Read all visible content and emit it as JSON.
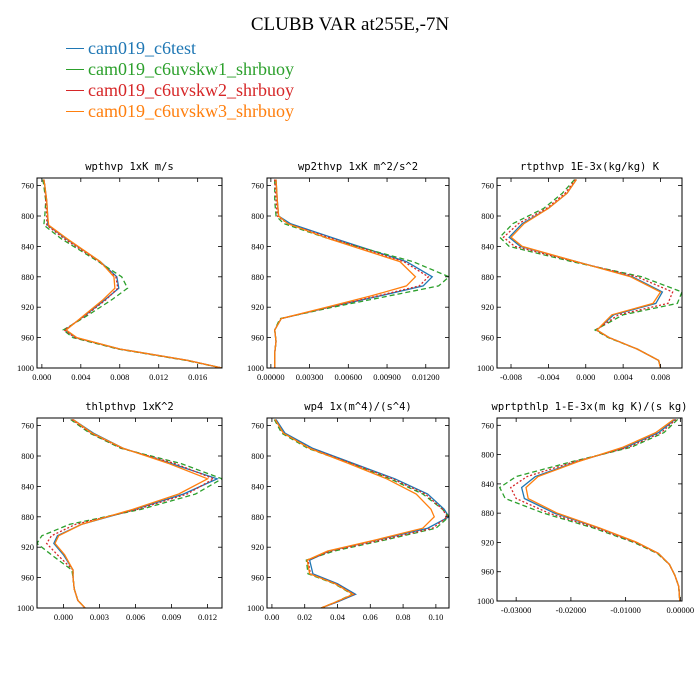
{
  "title": "CLUBB VAR at255E,-7N",
  "legend": [
    {
      "name": "cam019_c6test",
      "color": "#1f77b4",
      "dash": "solid"
    },
    {
      "name": "cam019_c6uvskw1_shrbuoy",
      "color": "#2ca02c",
      "dash": "dashed"
    },
    {
      "name": "cam019_c6uvskw2_shrbuoy",
      "color": "#d62728",
      "dash": "dotted"
    },
    {
      "name": "cam019_c6uvskw3_shrbuoy",
      "color": "#ff7f0e",
      "dash": "solid"
    }
  ],
  "chart_data": [
    {
      "type": "line",
      "title": "wpthvp   1xK m/s",
      "xlim": [
        -0.0005,
        0.0185
      ],
      "ylim": [
        1000,
        750
      ],
      "xticks": [
        "0.000",
        "0.004",
        "0.008",
        "0.012",
        "0.016"
      ],
      "xtick_values": [
        0,
        0.004,
        0.008,
        0.012,
        0.016
      ],
      "yticks": [
        760,
        800,
        840,
        880,
        920,
        960,
        1000
      ],
      "y": [
        752,
        760,
        780,
        800,
        812,
        830,
        860,
        880,
        895,
        910,
        930,
        950,
        960,
        975,
        990,
        1000
      ],
      "series": [
        {
          "values": [
            0.0002,
            0.0003,
            0.0005,
            0.0006,
            0.0006,
            0.0025,
            0.006,
            0.0077,
            0.0079,
            0.0065,
            0.0045,
            0.0024,
            0.0035,
            0.008,
            0.015,
            0.0185
          ]
        },
        {
          "values": [
            0.0001,
            0.0002,
            0.0004,
            0.0003,
            0.0002,
            0.002,
            0.0058,
            0.0082,
            0.0088,
            0.0072,
            0.0048,
            0.0022,
            0.0032,
            0.0078,
            0.0148,
            0.0185
          ]
        },
        {
          "values": [
            0.0002,
            0.0003,
            0.0004,
            0.0005,
            0.0005,
            0.0023,
            0.0059,
            0.0076,
            0.0078,
            0.0066,
            0.0046,
            0.0023,
            0.0034,
            0.0079,
            0.0149,
            0.0185
          ]
        },
        {
          "values": [
            0.0002,
            0.0003,
            0.0005,
            0.0006,
            0.0007,
            0.0026,
            0.006,
            0.0074,
            0.0075,
            0.0063,
            0.0044,
            0.0025,
            0.0036,
            0.008,
            0.015,
            0.0185
          ]
        }
      ]
    },
    {
      "type": "line",
      "title": "wp2thvp   1xK m^2/s^2",
      "xlim": [
        -0.0003,
        0.0138
      ],
      "ylim": [
        1000,
        750
      ],
      "xticks": [
        "0.00000",
        "0.00300",
        "0.00600",
        "0.00900",
        "0.01200"
      ],
      "xtick_values": [
        0,
        0.003,
        0.006,
        0.009,
        0.012
      ],
      "yticks": [
        760,
        800,
        840,
        880,
        920,
        960,
        1000
      ],
      "y": [
        752,
        780,
        800,
        810,
        830,
        860,
        880,
        892,
        905,
        920,
        935,
        950,
        965,
        980,
        1000
      ],
      "series": [
        {
          "values": [
            0.0004,
            0.0005,
            0.0006,
            0.0015,
            0.005,
            0.0105,
            0.0125,
            0.0118,
            0.0085,
            0.0045,
            0.0008,
            0.0003,
            0.0004,
            0.0003,
            0.0003
          ]
        },
        {
          "values": [
            0.0003,
            0.0003,
            0.0004,
            0.001,
            0.0045,
            0.011,
            0.0138,
            0.013,
            0.0092,
            0.0048,
            0.0007,
            0.0003,
            0.0004,
            0.0003,
            0.0003
          ]
        },
        {
          "values": [
            0.0003,
            0.0004,
            0.0005,
            0.0013,
            0.0048,
            0.0103,
            0.0122,
            0.0115,
            0.0083,
            0.0045,
            0.0008,
            0.0003,
            0.0004,
            0.0003,
            0.0003
          ]
        },
        {
          "values": [
            0.0004,
            0.0005,
            0.0006,
            0.0013,
            0.0045,
            0.01,
            0.0112,
            0.0105,
            0.0078,
            0.0043,
            0.0008,
            0.0003,
            0.0004,
            0.0003,
            0.0003
          ]
        }
      ]
    },
    {
      "type": "line",
      "title": "rtpthvp   1E-3x(kg/kg) K",
      "xlim": [
        -0.0095,
        0.0103
      ],
      "ylim": [
        1000,
        750
      ],
      "xticks": [
        "-0.008",
        "-0.004",
        "0.000",
        "0.004",
        "0.008"
      ],
      "xtick_values": [
        -0.008,
        -0.004,
        0,
        0.004,
        0.008
      ],
      "yticks": [
        760,
        800,
        840,
        880,
        920,
        960,
        1000
      ],
      "y": [
        752,
        770,
        790,
        810,
        828,
        840,
        860,
        880,
        900,
        915,
        930,
        950,
        960,
        975,
        990,
        1000
      ],
      "series": [
        {
          "values": [
            -0.001,
            -0.002,
            -0.004,
            -0.0068,
            -0.0082,
            -0.007,
            -0.001,
            0.005,
            0.0082,
            0.0075,
            0.003,
            0.0012,
            0.0025,
            0.0055,
            0.0078,
            0.008
          ]
        },
        {
          "values": [
            -0.0012,
            -0.0025,
            -0.0045,
            -0.0078,
            -0.0092,
            -0.0082,
            -0.0015,
            0.006,
            0.0103,
            0.0098,
            0.004,
            0.001,
            0.0024,
            0.0055,
            0.0078,
            0.008
          ]
        },
        {
          "values": [
            -0.0011,
            -0.0022,
            -0.0042,
            -0.0072,
            -0.0088,
            -0.0076,
            -0.0012,
            0.0055,
            0.0093,
            0.0088,
            0.0035,
            0.0011,
            0.0025,
            0.0055,
            0.0078,
            0.008
          ]
        },
        {
          "values": [
            -0.001,
            -0.002,
            -0.004,
            -0.0066,
            -0.008,
            -0.0068,
            -0.001,
            0.0048,
            0.008,
            0.0072,
            0.0028,
            0.0012,
            0.0025,
            0.0055,
            0.0078,
            0.008
          ]
        }
      ]
    },
    {
      "type": "line",
      "title": "thlpthvp   1xK^2",
      "xlim": [
        -0.0022,
        0.0132
      ],
      "ylim": [
        1000,
        750
      ],
      "xticks": [
        "0.000",
        "0.003",
        "0.006",
        "0.009",
        "0.012"
      ],
      "xtick_values": [
        0,
        0.003,
        0.006,
        0.009,
        0.012
      ],
      "yticks": [
        760,
        800,
        840,
        880,
        920,
        960,
        1000
      ],
      "y": [
        752,
        770,
        790,
        810,
        830,
        850,
        870,
        890,
        905,
        915,
        930,
        950,
        960,
        975,
        990,
        1000
      ],
      "series": [
        {
          "values": [
            0.0008,
            0.0025,
            0.005,
            0.009,
            0.0128,
            0.01,
            0.006,
            0.0015,
            -0.0005,
            -0.0008,
            0.0,
            0.0008,
            0.0008,
            0.0009,
            0.0012,
            0.0018
          ]
        },
        {
          "values": [
            0.0006,
            0.0022,
            0.0048,
            0.0098,
            0.0132,
            0.011,
            0.0065,
            0.0005,
            -0.0018,
            -0.0022,
            -0.001,
            0.0007,
            0.0008,
            0.0009,
            0.0012,
            0.0018
          ]
        },
        {
          "values": [
            0.0007,
            0.0023,
            0.0049,
            0.0093,
            0.0125,
            0.0103,
            0.0062,
            0.001,
            -0.001,
            -0.0014,
            -0.0005,
            0.0008,
            0.0008,
            0.0009,
            0.0012,
            0.0018
          ]
        },
        {
          "values": [
            0.0008,
            0.0024,
            0.005,
            0.0088,
            0.012,
            0.0096,
            0.0058,
            0.0015,
            -0.0004,
            -0.0007,
            0.0001,
            0.0008,
            0.0008,
            0.0009,
            0.0012,
            0.0018
          ]
        }
      ]
    },
    {
      "type": "line",
      "title": "wp4   1x(m^4)/(s^4)",
      "xlim": [
        -0.003,
        0.108
      ],
      "ylim": [
        1000,
        750
      ],
      "xticks": [
        "0.00",
        "0.02",
        "0.04",
        "0.06",
        "0.08",
        "0.10"
      ],
      "xtick_values": [
        0,
        0.02,
        0.04,
        0.06,
        0.08,
        0.1
      ],
      "yticks": [
        760,
        800,
        840,
        880,
        920,
        960,
        1000
      ],
      "y": [
        752,
        770,
        790,
        810,
        830,
        850,
        870,
        880,
        895,
        910,
        925,
        937,
        955,
        968,
        982,
        992,
        1000
      ],
      "series": [
        {
          "values": [
            0.0025,
            0.008,
            0.025,
            0.05,
            0.075,
            0.095,
            0.105,
            0.108,
            0.095,
            0.065,
            0.035,
            0.023,
            0.025,
            0.04,
            0.051,
            0.04,
            0.03
          ]
        },
        {
          "values": [
            0.0015,
            0.006,
            0.022,
            0.048,
            0.072,
            0.092,
            0.104,
            0.108,
            0.1,
            0.07,
            0.038,
            0.021,
            0.022,
            0.038,
            0.049,
            0.039,
            0.03
          ]
        },
        {
          "values": [
            0.002,
            0.007,
            0.0235,
            0.049,
            0.0735,
            0.0935,
            0.104,
            0.107,
            0.098,
            0.068,
            0.036,
            0.022,
            0.0235,
            0.039,
            0.05,
            0.0395,
            0.03
          ]
        },
        {
          "values": [
            0.002,
            0.007,
            0.023,
            0.047,
            0.07,
            0.088,
            0.097,
            0.099,
            0.092,
            0.064,
            0.034,
            0.0215,
            0.023,
            0.0385,
            0.0495,
            0.039,
            0.03
          ]
        }
      ]
    },
    {
      "type": "line",
      "title": "wprtpthlp   1-E-3x(m kg K)/(s kg)",
      "xlim": [
        -0.0335,
        0.0003
      ],
      "ylim": [
        1000,
        750
      ],
      "xticks": [
        "-0.03000",
        "-0.02000",
        "-0.01000",
        "0.00000"
      ],
      "xtick_values": [
        -0.03,
        -0.02,
        -0.01,
        0
      ],
      "yticks": [
        760,
        800,
        840,
        880,
        920,
        960,
        1000
      ],
      "y": [
        752,
        770,
        790,
        810,
        830,
        845,
        860,
        880,
        900,
        920,
        935,
        950,
        965,
        980,
        1000
      ],
      "series": [
        {
          "values": [
            -0.001,
            -0.004,
            -0.01,
            -0.019,
            -0.0265,
            -0.029,
            -0.0285,
            -0.023,
            -0.015,
            -0.008,
            -0.004,
            -0.002,
            -0.001,
            -0.0003,
            -0.0001
          ]
        },
        {
          "values": [
            -0.0005,
            -0.003,
            -0.009,
            -0.02,
            -0.03,
            -0.033,
            -0.032,
            -0.025,
            -0.016,
            -0.0085,
            -0.0042,
            -0.002,
            -0.001,
            -0.0003,
            -0.0001
          ]
        },
        {
          "values": [
            -0.0008,
            -0.0035,
            -0.0095,
            -0.0195,
            -0.028,
            -0.031,
            -0.03,
            -0.024,
            -0.0155,
            -0.0082,
            -0.0041,
            -0.002,
            -0.001,
            -0.0003,
            -0.0001
          ]
        },
        {
          "values": [
            -0.0012,
            -0.0045,
            -0.0105,
            -0.0188,
            -0.026,
            -0.0282,
            -0.0278,
            -0.0225,
            -0.0148,
            -0.0079,
            -0.004,
            -0.002,
            -0.001,
            -0.0003,
            -0.0001
          ]
        }
      ]
    }
  ]
}
